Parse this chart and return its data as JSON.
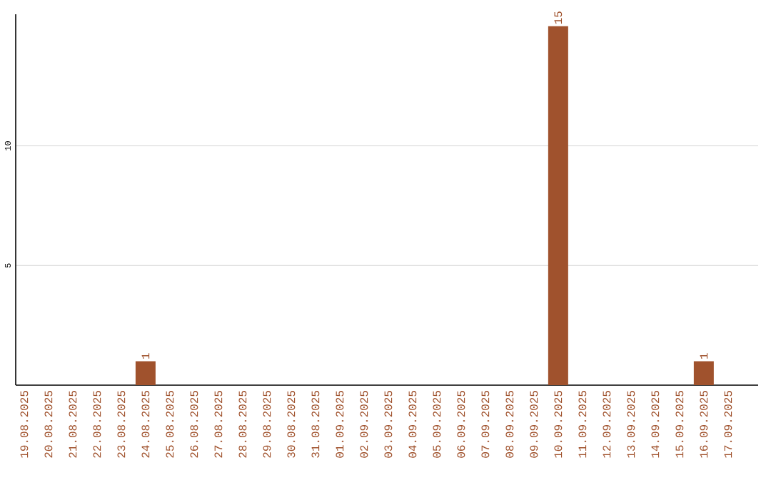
{
  "chart_data": {
    "type": "bar",
    "categories": [
      "19.08.2025",
      "20.08.2025",
      "21.08.2025",
      "22.08.2025",
      "23.08.2025",
      "24.08.2025",
      "25.08.2025",
      "26.08.2025",
      "27.08.2025",
      "28.08.2025",
      "29.08.2025",
      "30.08.2025",
      "31.08.2025",
      "01.09.2025",
      "02.09.2025",
      "03.09.2025",
      "04.09.2025",
      "05.09.2025",
      "06.09.2025",
      "07.09.2025",
      "08.09.2025",
      "09.09.2025",
      "10.09.2025",
      "11.09.2025",
      "12.09.2025",
      "13.09.2025",
      "14.09.2025",
      "15.09.2025",
      "16.09.2025",
      "17.09.2025"
    ],
    "values": [
      0,
      0,
      0,
      0,
      0,
      1,
      0,
      0,
      0,
      0,
      0,
      0,
      0,
      0,
      0,
      0,
      0,
      0,
      0,
      0,
      0,
      0,
      15,
      0,
      0,
      0,
      0,
      0,
      1,
      0
    ],
    "value_labels": [
      null,
      null,
      null,
      null,
      null,
      "1",
      null,
      null,
      null,
      null,
      null,
      null,
      null,
      null,
      null,
      null,
      null,
      null,
      null,
      null,
      null,
      null,
      "15",
      null,
      null,
      null,
      null,
      null,
      "1",
      null
    ],
    "color": "#a0522d",
    "ylim": [
      0,
      15.5
    ],
    "yticks": [
      5,
      10
    ],
    "grid": "y"
  }
}
